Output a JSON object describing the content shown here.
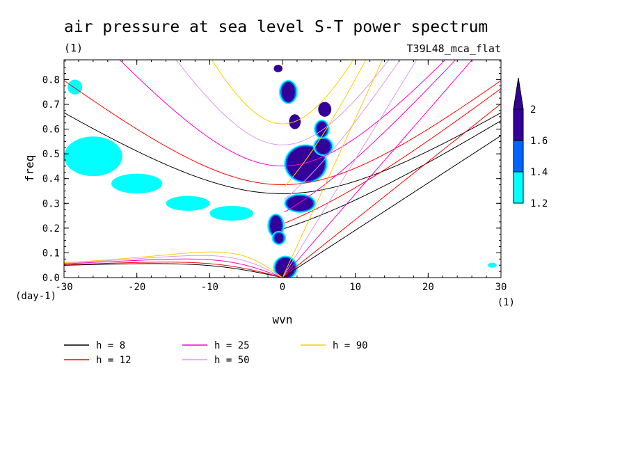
{
  "chart_data": {
    "type": "contour",
    "title": "air pressure at sea level S-T power spectrum",
    "units": "(1)",
    "run_label": "T39L48_mca_flat",
    "xlabel": "wvn",
    "ylabel": "freq",
    "x_unit_label": "(1)",
    "y_unit_label": "(day-1)",
    "xlim": [
      -30,
      30
    ],
    "ylim": [
      0,
      0.88
    ],
    "xticks": [
      -30,
      -20,
      -10,
      0,
      10,
      20,
      30
    ],
    "xtick_labels": [
      "-30",
      "-20",
      "-10",
      "0",
      "10",
      "20",
      "30"
    ],
    "yticks": [
      0,
      0.1,
      0.2,
      0.3,
      0.4,
      0.5,
      0.6,
      0.7,
      0.8
    ],
    "ytick_labels": [
      "0.0",
      "0.1",
      "0.2",
      "0.3",
      "0.4",
      "0.5",
      "0.6",
      "0.7",
      "0.8"
    ],
    "colorbar": {
      "levels": [
        1.2,
        1.4,
        1.6,
        2
      ],
      "labels": [
        "1.2",
        "1.4",
        "1.6",
        "2"
      ],
      "colors": [
        "#00ffff",
        "#0066ff",
        "#330099"
      ]
    },
    "shaded_regions": [
      {
        "level": 2,
        "x": 0.8,
        "y": 0.75,
        "rx": 0.9,
        "ry": 0.04
      },
      {
        "level": 2,
        "x": 3.2,
        "y": 0.46,
        "rx": 2.6,
        "ry": 0.07
      },
      {
        "level": 2,
        "x": 5.6,
        "y": 0.53,
        "rx": 1.0,
        "ry": 0.03
      },
      {
        "level": 2,
        "x": 5.4,
        "y": 0.6,
        "rx": 0.7,
        "ry": 0.03
      },
      {
        "level": 2,
        "x": 2.4,
        "y": 0.3,
        "rx": 1.8,
        "ry": 0.03
      },
      {
        "level": 2,
        "x": -0.9,
        "y": 0.21,
        "rx": 0.8,
        "ry": 0.04
      },
      {
        "level": 2,
        "x": -0.5,
        "y": 0.16,
        "rx": 0.6,
        "ry": 0.02
      },
      {
        "level": 2,
        "x": 0.4,
        "y": 0.04,
        "rx": 1.3,
        "ry": 0.04
      },
      {
        "level": 1.6,
        "x": 5.8,
        "y": 0.68,
        "rx": 0.9,
        "ry": 0.03
      },
      {
        "level": 1.6,
        "x": 1.7,
        "y": 0.63,
        "rx": 0.8,
        "ry": 0.03
      },
      {
        "level": 1.6,
        "x": -0.6,
        "y": 0.845,
        "rx": 0.6,
        "ry": 0.015
      },
      {
        "level": 1.2,
        "x": -26.0,
        "y": 0.49,
        "rx": 4.0,
        "ry": 0.08
      },
      {
        "level": 1.2,
        "x": -20.0,
        "y": 0.38,
        "rx": 3.5,
        "ry": 0.04
      },
      {
        "level": 1.2,
        "x": -13.0,
        "y": 0.3,
        "rx": 3.0,
        "ry": 0.03
      },
      {
        "level": 1.2,
        "x": -7.0,
        "y": 0.26,
        "rx": 3.0,
        "ry": 0.03
      },
      {
        "level": 1.2,
        "x": -28.5,
        "y": 0.77,
        "rx": 1.0,
        "ry": 0.03
      },
      {
        "level": 1.2,
        "x": 28.8,
        "y": 0.05,
        "rx": 0.6,
        "ry": 0.01
      }
    ],
    "series": [
      {
        "name": "h =  8",
        "color": "#000000",
        "equivalent_depth_m": 8
      },
      {
        "name": "h = 12",
        "color": "#ff0000",
        "equivalent_depth_m": 12
      },
      {
        "name": "h = 25",
        "color": "#ff00cc",
        "equivalent_depth_m": 25
      },
      {
        "name": "h = 50",
        "color": "#dd99ee",
        "equivalent_depth_m": 50
      },
      {
        "name": "h = 90",
        "color": "#ffcc00",
        "equivalent_depth_m": 90
      }
    ]
  }
}
